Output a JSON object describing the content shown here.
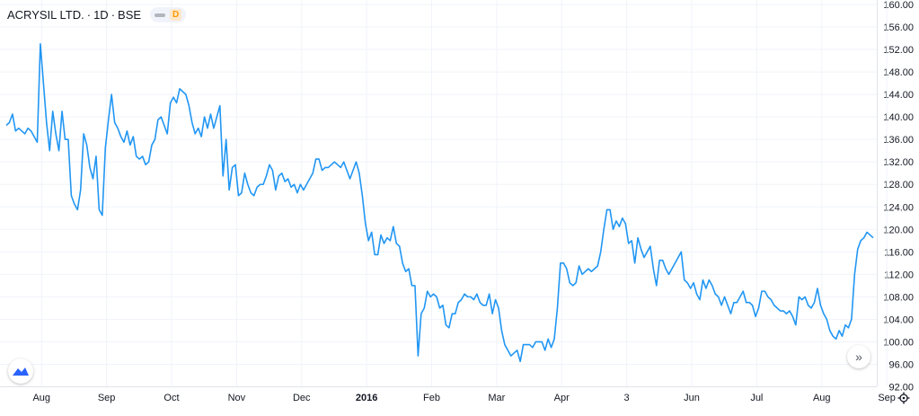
{
  "legend": {
    "symbol": "ACRYSIL LTD.",
    "interval": "1D",
    "exchange": "BSE",
    "badge": "D"
  },
  "icons": {
    "logo": "tradingview-cloud-icon",
    "scroll": "double-chevron-right-icon",
    "settings": "gear-icon"
  },
  "scroll_label": "»",
  "colors": {
    "line": "#2196f3",
    "grid": "#f0f3fa",
    "axis_text": "#131722",
    "price_tag_bg": "#2196f3"
  },
  "chart_data": {
    "type": "line",
    "ylim": [
      90,
      160
    ],
    "y_ticks": [
      "160.00",
      "156.00",
      "152.00",
      "148.00",
      "144.00",
      "140.00",
      "136.00",
      "132.00",
      "128.00",
      "124.00",
      "120.00",
      "116.00",
      "112.00",
      "108.00",
      "104.00",
      "100.00",
      "96.00",
      "92.00"
    ],
    "y_tick_values": [
      160,
      156,
      152,
      148,
      144,
      140,
      136,
      132,
      128,
      124,
      120,
      116,
      112,
      108,
      104,
      100,
      96,
      92
    ],
    "x_ticks": [
      {
        "label": "Aug",
        "index": 5,
        "bold": false
      },
      {
        "label": "Sep",
        "index": 26,
        "bold": false
      },
      {
        "label": "Oct",
        "index": 47,
        "bold": false
      },
      {
        "label": "Nov",
        "index": 68,
        "bold": false
      },
      {
        "label": "Dec",
        "index": 89,
        "bold": false
      },
      {
        "label": "2016",
        "index": 110,
        "bold": true
      },
      {
        "label": "Feb",
        "index": 131,
        "bold": false
      },
      {
        "label": "Mar",
        "index": 152,
        "bold": false
      },
      {
        "label": "Apr",
        "index": 173,
        "bold": false
      },
      {
        "label": "3",
        "index": 194,
        "bold": false
      },
      {
        "label": "Jun",
        "index": 215,
        "bold": false
      },
      {
        "label": "Jul",
        "index": 236,
        "bold": false
      },
      {
        "label": "Aug",
        "index": 257,
        "bold": false
      },
      {
        "label": "Sep",
        "index": 278,
        "bold": false
      }
    ],
    "series": [
      {
        "values": [
          138.5,
          139,
          140.5,
          137.5,
          138,
          137.5,
          137,
          138,
          137.5,
          136.5,
          135.5,
          153,
          146,
          139,
          134,
          141,
          137,
          134,
          141,
          136,
          136,
          126,
          124.5,
          123.5,
          127,
          137,
          135,
          131,
          129,
          133,
          123.5,
          122.5,
          134.5,
          139.5,
          144,
          139,
          138,
          136.5,
          135.5,
          137.5,
          135,
          136.5,
          133,
          132.5,
          133,
          131.5,
          132,
          135,
          136,
          139.5,
          140,
          138.5,
          137,
          142.5,
          143.5,
          142.5,
          145,
          144.5,
          144,
          142,
          139,
          137,
          138,
          136.5,
          140,
          138,
          140.5,
          138,
          140,
          142,
          129.5,
          136,
          127,
          131,
          131.5,
          126,
          126.5,
          130,
          128,
          126.5,
          126,
          127.5,
          128,
          128,
          129.5,
          131.5,
          130.5,
          127,
          129.5,
          130,
          128.5,
          129,
          127.5,
          128,
          126.5,
          128,
          127,
          128,
          129,
          130,
          132.5,
          132.5,
          130.5,
          131,
          131,
          131.5,
          132,
          131.5,
          131,
          132,
          130.5,
          129,
          130.5,
          132,
          130,
          126,
          121,
          118,
          119.5,
          115.5,
          115.5,
          119,
          117.5,
          118.5,
          118,
          120.5,
          117.5,
          117,
          114,
          112.5,
          113,
          110,
          110,
          97.5,
          105,
          106,
          109,
          108,
          108.5,
          108,
          106,
          106.5,
          103,
          102.5,
          105,
          105,
          107,
          107.5,
          108.5,
          108,
          108,
          107.5,
          108.5,
          107,
          106.5,
          106.5,
          108.5,
          105,
          107.5,
          106,
          102,
          99.5,
          98.5,
          97.5,
          98,
          98.5,
          96.5,
          99.5,
          99.5,
          99.5,
          99,
          100,
          100,
          100,
          98.5,
          100.5,
          99,
          100.5,
          106,
          114,
          114,
          113,
          110.5,
          110,
          110.5,
          113.5,
          112,
          112.5,
          113,
          112.5,
          113,
          113.5,
          116,
          120,
          123.5,
          123.5,
          120,
          121.5,
          120.5,
          122,
          121,
          117.5,
          118,
          114,
          118.5,
          116.5,
          115,
          116,
          117,
          113,
          110,
          114.5,
          114.5,
          113,
          112,
          113,
          114,
          115,
          116,
          111,
          110.5,
          109.5,
          110.5,
          108.5,
          107.5,
          111,
          109.5,
          111,
          110,
          108.5,
          108,
          106.5,
          108,
          106.5,
          105,
          107,
          107,
          108,
          109,
          107,
          107,
          106.5,
          104.5,
          106,
          109,
          109,
          108,
          107.5,
          106.5,
          106,
          105.5,
          105.5,
          105,
          105.5,
          104.5,
          103,
          108,
          107.5,
          108,
          106.5,
          106,
          107,
          109.5,
          106.5,
          105,
          104,
          102,
          101,
          100.5,
          102,
          101,
          103,
          102.5,
          104,
          112,
          116.5,
          118,
          118.5,
          119.5,
          119,
          118.5
        ]
      }
    ]
  }
}
